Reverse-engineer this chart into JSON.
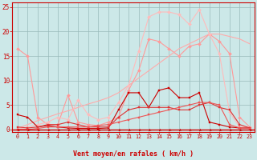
{
  "x": [
    0,
    1,
    2,
    3,
    4,
    5,
    6,
    7,
    8,
    9,
    10,
    11,
    12,
    13,
    14,
    15,
    16,
    17,
    18,
    19,
    20,
    21,
    22,
    23
  ],
  "series": [
    {
      "name": "jagged_pink_top",
      "color": "#ff9999",
      "linewidth": 0.8,
      "marker": "D",
      "markersize": 2.0,
      "y": [
        16.5,
        15.0,
        2.5,
        1.0,
        1.0,
        7.0,
        1.5,
        1.0,
        0.8,
        1.5,
        2.5,
        8.0,
        12.0,
        18.5,
        18.0,
        16.5,
        15.0,
        17.0,
        17.5,
        19.5,
        18.0,
        15.5,
        2.5,
        0.5
      ]
    },
    {
      "name": "rising_straight_pink",
      "color": "#ffaaaa",
      "linewidth": 0.8,
      "marker": null,
      "markersize": 0,
      "y": [
        0.2,
        1.0,
        1.8,
        2.5,
        3.2,
        3.8,
        4.5,
        5.2,
        5.8,
        6.5,
        7.5,
        9.0,
        10.5,
        12.0,
        13.5,
        15.0,
        16.5,
        17.5,
        18.5,
        19.5,
        19.5,
        19.0,
        18.5,
        17.5
      ]
    },
    {
      "name": "peak_pink_top",
      "color": "#ffbbbb",
      "linewidth": 0.8,
      "marker": "D",
      "markersize": 2.0,
      "y": [
        0.0,
        0.5,
        1.0,
        1.5,
        2.5,
        2.0,
        6.0,
        3.0,
        2.0,
        2.5,
        5.5,
        9.0,
        16.0,
        23.0,
        24.0,
        24.0,
        23.5,
        21.5,
        24.5,
        19.5,
        15.5,
        3.5,
        0.5,
        0.5
      ]
    },
    {
      "name": "dark_red_medium",
      "color": "#cc0000",
      "linewidth": 0.8,
      "marker": "s",
      "markersize": 2.0,
      "y": [
        3.0,
        2.5,
        0.5,
        0.8,
        0.5,
        0.3,
        0.2,
        0.2,
        0.2,
        0.3,
        4.0,
        7.5,
        7.5,
        4.5,
        8.0,
        8.5,
        6.5,
        6.5,
        7.5,
        1.5,
        1.0,
        0.5,
        0.3,
        0.3
      ]
    },
    {
      "name": "medium_red",
      "color": "#dd3333",
      "linewidth": 0.8,
      "marker": "s",
      "markersize": 2.0,
      "y": [
        0.5,
        0.3,
        0.5,
        1.0,
        1.0,
        1.5,
        1.0,
        0.5,
        0.5,
        0.5,
        2.5,
        4.0,
        4.5,
        4.5,
        4.5,
        4.5,
        4.0,
        4.0,
        5.0,
        5.5,
        4.5,
        4.0,
        1.0,
        0.3
      ]
    },
    {
      "name": "flat_low_red",
      "color": "#ee5555",
      "linewidth": 0.8,
      "marker": "s",
      "markersize": 2.0,
      "y": [
        0.0,
        0.0,
        0.2,
        0.5,
        0.5,
        0.5,
        0.5,
        0.5,
        0.8,
        1.0,
        1.5,
        2.0,
        2.5,
        3.0,
        3.5,
        4.0,
        4.5,
        5.0,
        5.5,
        5.5,
        5.0,
        1.0,
        0.3,
        0.2
      ]
    }
  ],
  "xlim": [
    -0.5,
    23.5
  ],
  "ylim": [
    -0.5,
    26
  ],
  "yticks": [
    0,
    5,
    10,
    15,
    20,
    25
  ],
  "xticks": [
    0,
    1,
    2,
    3,
    4,
    5,
    6,
    7,
    8,
    9,
    10,
    11,
    12,
    13,
    14,
    15,
    16,
    17,
    18,
    19,
    20,
    21,
    22,
    23
  ],
  "xlabel": "Vent moyen/en rafales ( km/h )",
  "bg_color": "#cce8e8",
  "grid_color": "#99bbbb",
  "text_color": "#cc0000",
  "axis_color": "#cc0000"
}
